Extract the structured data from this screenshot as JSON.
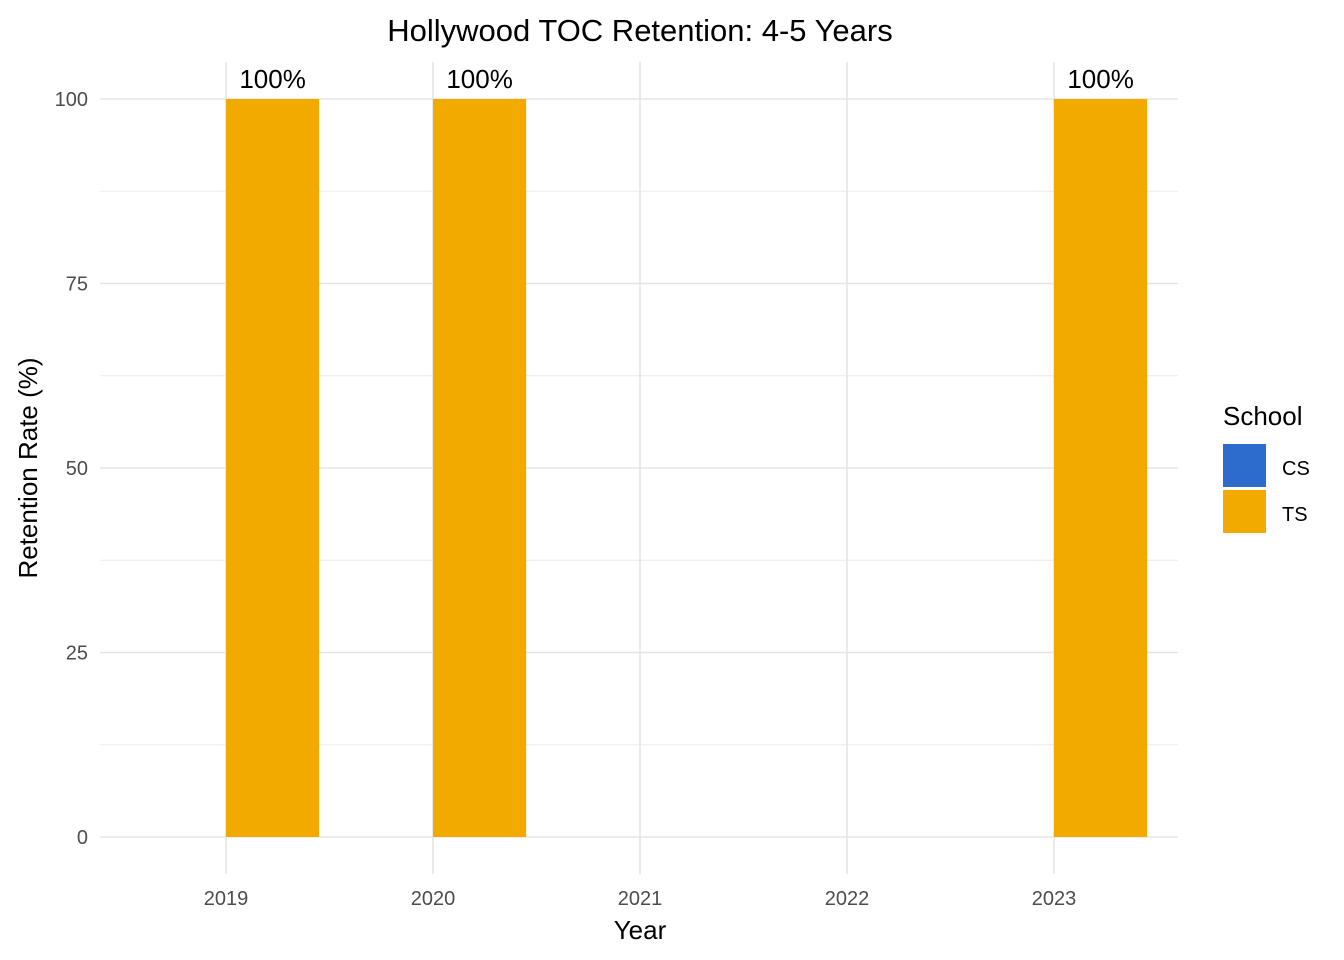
{
  "chart_data": {
    "type": "bar",
    "title": "Hollywood TOC Retention: 4-5 Years",
    "xlabel": "Year",
    "ylabel": "Retention Rate (%)",
    "categories": [
      "2019",
      "2020",
      "2021",
      "2022",
      "2023"
    ],
    "ylim": [
      0,
      100
    ],
    "yticks": [
      0,
      25,
      50,
      75,
      100
    ],
    "grid": true,
    "legend": {
      "title": "School",
      "placement": "right",
      "entries": [
        {
          "name": "CS",
          "color": "#2D6BCC"
        },
        {
          "name": "TS",
          "color": "#F2AA00"
        }
      ]
    },
    "series": [
      {
        "name": "CS",
        "color": "#2D6BCC",
        "values": [
          null,
          null,
          null,
          null,
          null
        ]
      },
      {
        "name": "TS",
        "color": "#F2AA00",
        "values": [
          100,
          100,
          null,
          null,
          100
        ]
      }
    ],
    "data_labels": [
      "100%",
      "100%",
      null,
      null,
      "100%"
    ]
  }
}
